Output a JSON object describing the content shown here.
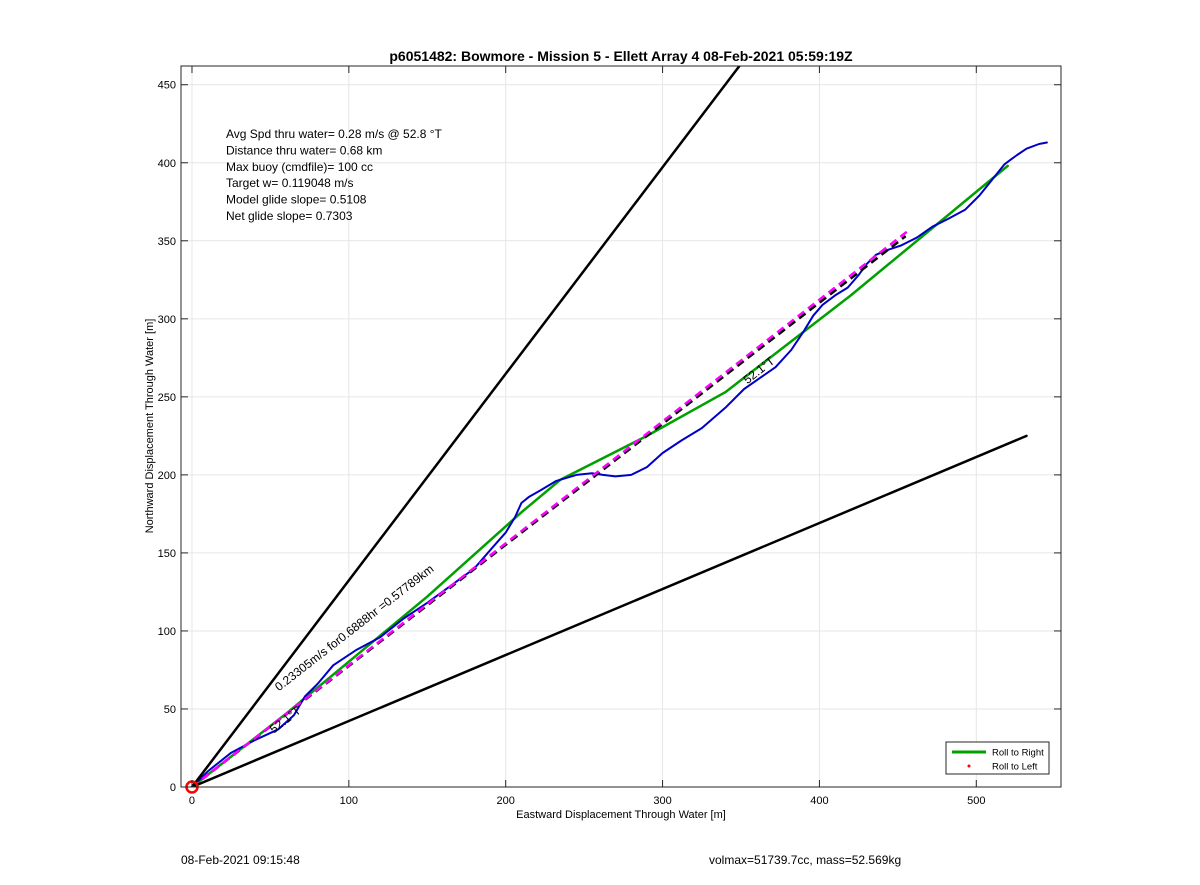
{
  "chart_data": {
    "type": "line",
    "title": "p6051482: Bowmore - Mission 5 - Ellett Array 4 08-Feb-2021 05:59:19Z",
    "xlabel": "Eastward Displacement Through Water [m]",
    "ylabel": "Northward Displacement Through Water [m]",
    "xlim": [
      -7,
      554
    ],
    "ylim": [
      0,
      462
    ],
    "xticks": [
      0,
      100,
      200,
      300,
      400,
      500
    ],
    "yticks": [
      0,
      50,
      100,
      150,
      200,
      250,
      300,
      350,
      400,
      450
    ],
    "grid": true,
    "legend_position": "bottom-right",
    "legend": [
      {
        "label": "Roll to Right",
        "color": "#00a000",
        "style": "line"
      },
      {
        "label": "Roll to Left",
        "color": "#ff0000",
        "style": "dot"
      }
    ],
    "info_lines": [
      "Avg Spd thru water=  0.28 m/s @  52.8 °T",
      "Distance thru water=  0.68 km",
      "Max buoy (cmdfile)= 100 cc",
      "Target w= 0.119048 m/s",
      "Model glide slope= 0.5108",
      "Net glide slope= 0.7303"
    ],
    "annotations": [
      {
        "text": "0.23305m/s for0.6888hr =0.57789km",
        "x": 105,
        "y": 100,
        "angle_deg": 37.9
      },
      {
        "text": "52.1°T",
        "x": 61,
        "y": 41,
        "angle_deg": 37.9
      },
      {
        "text": "52.1°T",
        "x": 363,
        "y": 265,
        "angle_deg": 37.9
      }
    ],
    "series": [
      {
        "name": "Roll to Right",
        "color": "#00a000",
        "width": 2.5,
        "x": [
          0,
          60,
          150,
          210,
          235,
          290,
          340,
          420,
          520
        ],
        "y": [
          0,
          47,
          122,
          176,
          197,
          225,
          253,
          315,
          398
        ]
      },
      {
        "color": "#0000c8",
        "width": 2,
        "x": [
          0,
          10,
          25,
          40,
          55,
          65,
          72,
          80,
          90,
          105,
          120,
          135,
          150,
          165,
          180,
          192,
          200,
          206,
          210,
          215,
          222,
          232,
          245,
          255,
          262,
          270,
          280,
          290,
          300,
          312,
          325,
          340,
          352,
          362,
          372,
          382,
          390,
          396,
          402,
          410,
          418,
          425,
          430,
          436,
          443,
          452,
          462,
          472,
          482,
          493,
          502,
          510,
          518,
          522,
          526,
          532,
          540,
          545
        ],
        "y": [
          0,
          10,
          22,
          30,
          37,
          46,
          58,
          66,
          78,
          88,
          96,
          108,
          118,
          129,
          140,
          154,
          163,
          173,
          182,
          186,
          190,
          196,
          200,
          201,
          200,
          199,
          200,
          205,
          214,
          222,
          230,
          243,
          255,
          262,
          269,
          280,
          292,
          302,
          309,
          315,
          320,
          328,
          335,
          341,
          344,
          347,
          352,
          359,
          364,
          370,
          379,
          389,
          399,
          402,
          405,
          409,
          412,
          413
        ]
      },
      {
        "color": "#000000",
        "width": 2.5,
        "dash": "8,5",
        "x": [
          0,
          455
        ],
        "y": [
          0,
          353
        ]
      },
      {
        "color": "#ff00ff",
        "width": 2.5,
        "dash": "8,5",
        "x": [
          0,
          456
        ],
        "y": [
          0,
          356
        ]
      },
      {
        "color": "#000000",
        "width": 2.5,
        "x": [
          0,
          349
        ],
        "y": [
          0,
          462
        ]
      },
      {
        "color": "#000000",
        "width": 2.5,
        "x": [
          0,
          532
        ],
        "y": [
          0,
          225
        ]
      }
    ],
    "start_marker": {
      "x": 0,
      "y": 0,
      "color": "#ff0000"
    }
  },
  "footer": {
    "timestamp": "08-Feb-2021 09:15:48",
    "summary": "volmax=51739.7cc, mass=52.569kg"
  }
}
